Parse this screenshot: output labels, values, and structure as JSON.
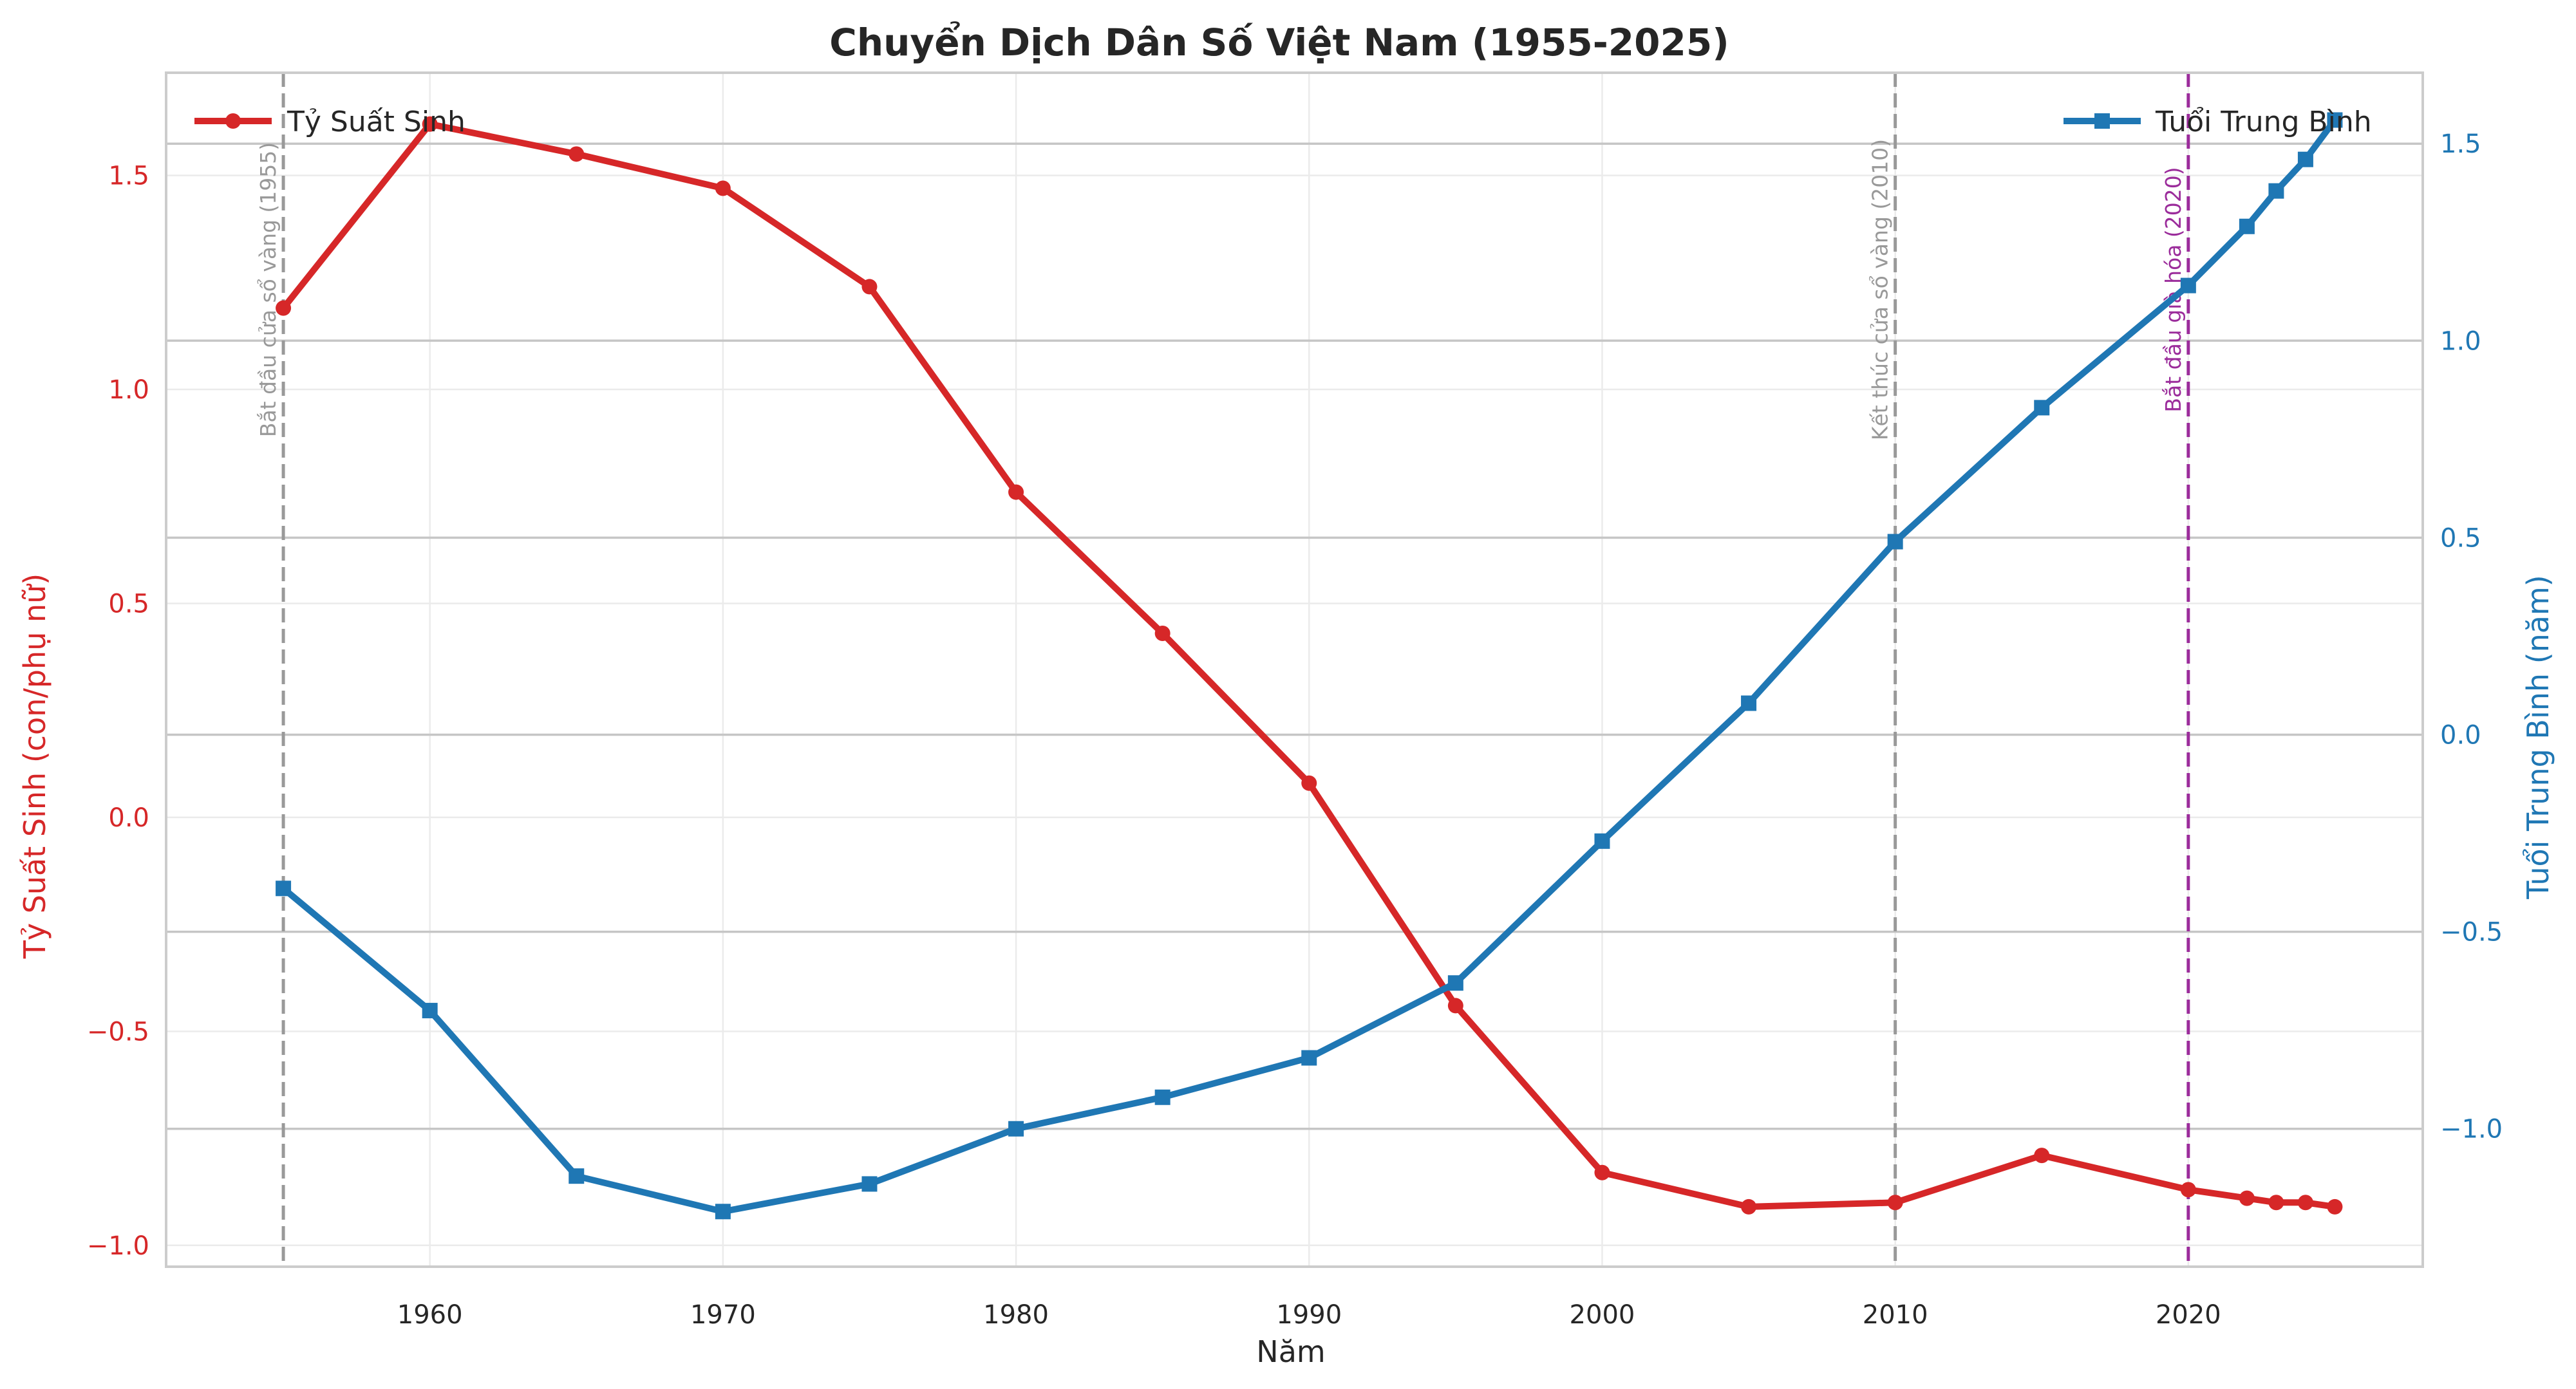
{
  "chart_data": {
    "type": "line",
    "title": "Chuyển Dịch Dân Số Việt Nam (1955-2025)",
    "xlabel": "Năm",
    "ylabel_left": "Tỷ Suất Sinh (con/phụ nữ)",
    "ylabel_right": "Tuổi Trung Bình (năm)",
    "xlim": [
      1951,
      2028
    ],
    "ylim_left": [
      -1.05,
      1.74
    ],
    "ylim_right": [
      -1.35,
      1.68
    ],
    "x_ticks": [
      1960,
      1970,
      1980,
      1990,
      2000,
      2010,
      2020
    ],
    "y_ticks_left": [
      -1.0,
      -0.5,
      0.0,
      0.5,
      1.0,
      1.5
    ],
    "y_ticks_right": [
      -1.0,
      -0.5,
      0.0,
      0.5,
      1.0,
      1.5
    ],
    "y_tick_labels_left": [
      "−1.0",
      "−0.5",
      "0.0",
      "0.5",
      "1.0",
      "1.5"
    ],
    "y_tick_labels_right": [
      "−1.0",
      "−0.5",
      "0.0",
      "0.5",
      "1.0",
      "1.5"
    ],
    "grid": true,
    "series": [
      {
        "name": "Tỷ Suất Sinh",
        "axis": "left",
        "color": "#d62728",
        "marker": "circle",
        "x": [
          1955,
          1960,
          1965,
          1970,
          1975,
          1980,
          1985,
          1990,
          1995,
          2000,
          2005,
          2010,
          2015,
          2020,
          2022,
          2023,
          2024,
          2025
        ],
        "y": [
          1.19,
          1.62,
          1.55,
          1.47,
          1.24,
          0.76,
          0.43,
          0.08,
          -0.44,
          -0.83,
          -0.91,
          -0.9,
          -0.79,
          -0.87,
          -0.89,
          -0.9,
          -0.9,
          -0.91
        ]
      },
      {
        "name": "Tuổi Trung Bình",
        "axis": "right",
        "color": "#1f77b4",
        "marker": "square",
        "x": [
          1955,
          1960,
          1965,
          1970,
          1975,
          1980,
          1985,
          1990,
          1995,
          2000,
          2005,
          2010,
          2015,
          2020,
          2022,
          2023,
          2024,
          2025
        ],
        "y": [
          -0.39,
          -0.7,
          -1.12,
          -1.21,
          -1.14,
          -1.0,
          -0.92,
          -0.82,
          -0.63,
          -0.27,
          0.08,
          0.49,
          0.83,
          1.14,
          1.29,
          1.38,
          1.46,
          1.56
        ]
      }
    ],
    "legend_left": {
      "position": "top-left",
      "label": "Tỷ Suất Sinh"
    },
    "legend_right": {
      "position": "top-right",
      "label": "Tuổi Trung Bình"
    },
    "annotations": [
      {
        "x": 1955,
        "label": "Bắt đầu cửa sổ vàng (1955)",
        "color": "#999999"
      },
      {
        "x": 2010,
        "label": "Kết thúc cửa sổ vàng (2010)",
        "color": "#999999"
      },
      {
        "x": 2020,
        "label": "Bắt đầu già hóa (2020)",
        "color": "#9b2c9b"
      }
    ]
  }
}
